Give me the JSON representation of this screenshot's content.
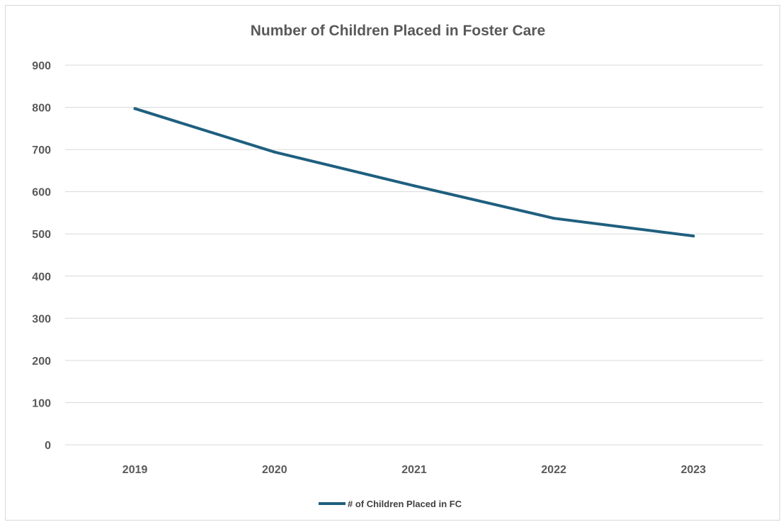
{
  "chart_data": {
    "type": "line",
    "title": "Number of Children Placed in Foster Care",
    "xlabel": "",
    "ylabel": "",
    "categories": [
      "2019",
      "2020",
      "2021",
      "2022",
      "2023"
    ],
    "series": [
      {
        "name": "# of Children Placed in FC",
        "values": [
          797,
          694,
          614,
          537,
          495
        ],
        "color": "#1f5f7f"
      }
    ],
    "ylim": [
      0,
      900
    ],
    "yticks": [
      "0",
      "100",
      "200",
      "300",
      "400",
      "500",
      "600",
      "700",
      "800",
      "900"
    ],
    "grid": true,
    "legend": "bottom"
  }
}
